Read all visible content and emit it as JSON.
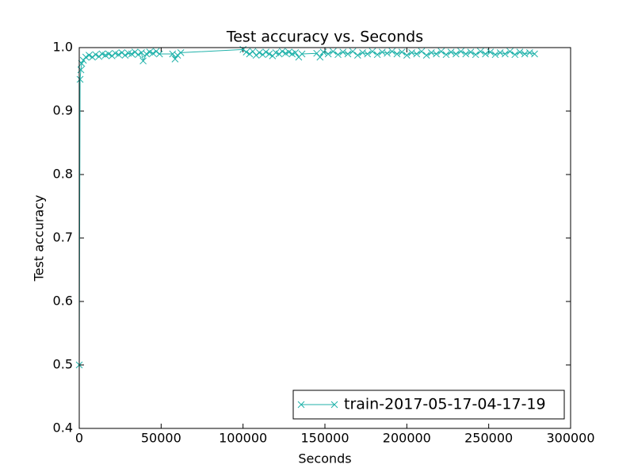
{
  "chart_data": {
    "type": "line",
    "title": "Test accuracy  vs. Seconds",
    "xlabel": "Seconds",
    "ylabel": "Test accuracy",
    "xlim": [
      0,
      300000
    ],
    "ylim": [
      0.4,
      1.0
    ],
    "xticks": [
      0,
      50000,
      100000,
      150000,
      200000,
      250000,
      300000
    ],
    "yticks": [
      0.4,
      0.5,
      0.6,
      0.7,
      0.8,
      0.9,
      {
        "value": 1.0,
        "label": "1.0"
      }
    ],
    "legend": "lower right",
    "marker": "x",
    "series": [
      {
        "name": "train-2017-05-17-04-17-19",
        "color": "#20b2aa",
        "x": [
          0,
          500,
          1000,
          1500,
          2500,
          4000,
          6000,
          8000,
          10000,
          12000,
          14000,
          16000,
          18000,
          20000,
          22000,
          24000,
          26000,
          28000,
          30000,
          32000,
          34000,
          36000,
          38000,
          39000,
          41000,
          43000,
          45000,
          47000,
          49000,
          57000,
          58500,
          60000,
          62000,
          100000,
          102000,
          104000,
          106000,
          108000,
          110000,
          112000,
          114000,
          116000,
          118000,
          120000,
          122000,
          124000,
          126000,
          128000,
          130000,
          132000,
          134000,
          136000,
          145000,
          147000,
          149000,
          152000,
          155000,
          158000,
          161000,
          164000,
          167000,
          170000,
          173000,
          176000,
          179000,
          182000,
          185000,
          188000,
          191000,
          194000,
          197000,
          200000,
          203000,
          206000,
          209000,
          212000,
          215000,
          218000,
          221000,
          224000,
          227000,
          230000,
          233000,
          236000,
          239000,
          242000,
          245000,
          248000,
          251000,
          254000,
          257000,
          260000,
          263000,
          266000,
          269000,
          272000,
          275000,
          278000
        ],
        "values": [
          0.5,
          0.95,
          0.965,
          0.975,
          0.98,
          0.985,
          0.988,
          0.985,
          0.989,
          0.986,
          0.99,
          0.988,
          0.99,
          0.987,
          0.991,
          0.989,
          0.992,
          0.988,
          0.991,
          0.99,
          0.993,
          0.989,
          0.992,
          0.979,
          0.99,
          0.993,
          0.991,
          0.994,
          0.99,
          0.99,
          0.982,
          0.988,
          0.992,
          0.997,
          0.993,
          0.99,
          0.994,
          0.988,
          0.992,
          0.989,
          0.993,
          0.99,
          0.987,
          0.992,
          0.99,
          0.994,
          0.991,
          0.993,
          0.99,
          0.992,
          0.985,
          0.99,
          0.991,
          0.985,
          0.993,
          0.99,
          0.994,
          0.989,
          0.993,
          0.99,
          0.994,
          0.988,
          0.992,
          0.99,
          0.994,
          0.989,
          0.993,
          0.991,
          0.994,
          0.99,
          0.993,
          0.988,
          0.992,
          0.99,
          0.994,
          0.988,
          0.992,
          0.99,
          0.994,
          0.989,
          0.993,
          0.99,
          0.994,
          0.99,
          0.993,
          0.989,
          0.994,
          0.99,
          0.993,
          0.989,
          0.992,
          0.99,
          0.994,
          0.989,
          0.993,
          0.99,
          0.992,
          0.99
        ]
      }
    ]
  }
}
